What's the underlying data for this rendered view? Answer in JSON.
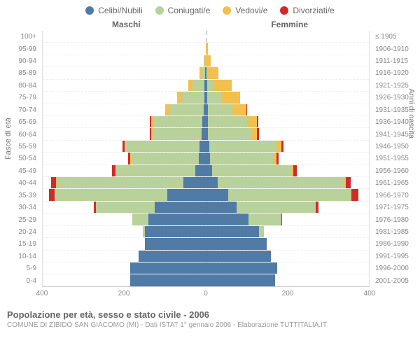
{
  "legend": [
    {
      "label": "Celibi/Nubili",
      "color": "#4f7ba6"
    },
    {
      "label": "Coniugati/e",
      "color": "#b9d19a"
    },
    {
      "label": "Vedovi/e",
      "color": "#f3c04e"
    },
    {
      "label": "Divorziati/e",
      "color": "#cf2b2b"
    }
  ],
  "side_labels": {
    "male": "Maschi",
    "female": "Femmine"
  },
  "y_title_left": "Fasce di età",
  "y_title_right": "Anni di nascita",
  "footer_title": "Popolazione per età, sesso e stato civile - 2006",
  "footer_sub": "COMUNE DI ZIBIDO SAN GIACOMO (MI) - Dati ISTAT 1° gennaio 2006 - Elaborazione TUTTITALIA.IT",
  "x_max": 400,
  "x_ticks": [
    400,
    200,
    0,
    200,
    400
  ],
  "colors": {
    "single": "#4f7ba6",
    "married": "#b9d19a",
    "widowed": "#f3c04e",
    "divorced": "#cf2b2b",
    "grid": "#e0e0e0",
    "center": "#cccccc"
  },
  "rows": [
    {
      "age": "100+",
      "birth": "≤ 1905",
      "m": {
        "s": 0,
        "m": 0,
        "w": 0,
        "d": 0
      },
      "f": {
        "s": 0,
        "m": 0,
        "w": 0,
        "d": 0
      }
    },
    {
      "age": "95-99",
      "birth": "1906-1910",
      "m": {
        "s": 0,
        "m": 0,
        "w": 0,
        "d": 0
      },
      "f": {
        "s": 0,
        "m": 0,
        "w": 5,
        "d": 0
      }
    },
    {
      "age": "90-94",
      "birth": "1911-1915",
      "m": {
        "s": 0,
        "m": 3,
        "w": 3,
        "d": 0
      },
      "f": {
        "s": 0,
        "m": 0,
        "w": 12,
        "d": 0
      }
    },
    {
      "age": "85-89",
      "birth": "1916-1920",
      "m": {
        "s": 2,
        "m": 8,
        "w": 5,
        "d": 0
      },
      "f": {
        "s": 2,
        "m": 4,
        "w": 25,
        "d": 0
      }
    },
    {
      "age": "80-84",
      "birth": "1921-1925",
      "m": {
        "s": 3,
        "m": 30,
        "w": 10,
        "d": 0
      },
      "f": {
        "s": 3,
        "m": 15,
        "w": 45,
        "d": 0
      }
    },
    {
      "age": "75-79",
      "birth": "1926-1930",
      "m": {
        "s": 4,
        "m": 55,
        "w": 12,
        "d": 0
      },
      "f": {
        "s": 4,
        "m": 35,
        "w": 45,
        "d": 0
      }
    },
    {
      "age": "70-74",
      "birth": "1931-1935",
      "m": {
        "s": 5,
        "m": 85,
        "w": 10,
        "d": 0
      },
      "f": {
        "s": 5,
        "m": 60,
        "w": 35,
        "d": 2
      }
    },
    {
      "age": "65-69",
      "birth": "1936-1940",
      "m": {
        "s": 8,
        "m": 120,
        "w": 6,
        "d": 3
      },
      "f": {
        "s": 6,
        "m": 95,
        "w": 25,
        "d": 3
      }
    },
    {
      "age": "60-64",
      "birth": "1941-1945",
      "m": {
        "s": 10,
        "m": 120,
        "w": 4,
        "d": 4
      },
      "f": {
        "s": 6,
        "m": 105,
        "w": 15,
        "d": 4
      }
    },
    {
      "age": "55-59",
      "birth": "1946-1950",
      "m": {
        "s": 15,
        "m": 180,
        "w": 4,
        "d": 6
      },
      "f": {
        "s": 8,
        "m": 165,
        "w": 12,
        "d": 6
      }
    },
    {
      "age": "50-54",
      "birth": "1951-1955",
      "m": {
        "s": 18,
        "m": 165,
        "w": 2,
        "d": 6
      },
      "f": {
        "s": 10,
        "m": 155,
        "w": 8,
        "d": 6
      }
    },
    {
      "age": "45-49",
      "birth": "1956-1960",
      "m": {
        "s": 25,
        "m": 195,
        "w": 2,
        "d": 8
      },
      "f": {
        "s": 15,
        "m": 195,
        "w": 5,
        "d": 8
      }
    },
    {
      "age": "40-44",
      "birth": "1961-1965",
      "m": {
        "s": 55,
        "m": 310,
        "w": 2,
        "d": 12
      },
      "f": {
        "s": 30,
        "m": 310,
        "w": 4,
        "d": 12
      }
    },
    {
      "age": "35-39",
      "birth": "1966-1970",
      "m": {
        "s": 95,
        "m": 275,
        "w": 0,
        "d": 15
      },
      "f": {
        "s": 55,
        "m": 300,
        "w": 2,
        "d": 18
      }
    },
    {
      "age": "30-34",
      "birth": "1971-1975",
      "m": {
        "s": 125,
        "m": 145,
        "w": 0,
        "d": 5
      },
      "f": {
        "s": 75,
        "m": 195,
        "w": 0,
        "d": 6
      }
    },
    {
      "age": "25-29",
      "birth": "1976-1980",
      "m": {
        "s": 140,
        "m": 40,
        "w": 0,
        "d": 0
      },
      "f": {
        "s": 105,
        "m": 80,
        "w": 0,
        "d": 2
      }
    },
    {
      "age": "20-24",
      "birth": "1981-1985",
      "m": {
        "s": 150,
        "m": 4,
        "w": 0,
        "d": 0
      },
      "f": {
        "s": 130,
        "m": 12,
        "w": 0,
        "d": 0
      }
    },
    {
      "age": "15-19",
      "birth": "1986-1990",
      "m": {
        "s": 150,
        "m": 0,
        "w": 0,
        "d": 0
      },
      "f": {
        "s": 150,
        "m": 0,
        "w": 0,
        "d": 0
      }
    },
    {
      "age": "10-14",
      "birth": "1991-1995",
      "m": {
        "s": 165,
        "m": 0,
        "w": 0,
        "d": 0
      },
      "f": {
        "s": 160,
        "m": 0,
        "w": 0,
        "d": 0
      }
    },
    {
      "age": "5-9",
      "birth": "1996-2000",
      "m": {
        "s": 185,
        "m": 0,
        "w": 0,
        "d": 0
      },
      "f": {
        "s": 175,
        "m": 0,
        "w": 0,
        "d": 0
      }
    },
    {
      "age": "0-4",
      "birth": "2001-2005",
      "m": {
        "s": 185,
        "m": 0,
        "w": 0,
        "d": 0
      },
      "f": {
        "s": 170,
        "m": 0,
        "w": 0,
        "d": 0
      }
    }
  ]
}
